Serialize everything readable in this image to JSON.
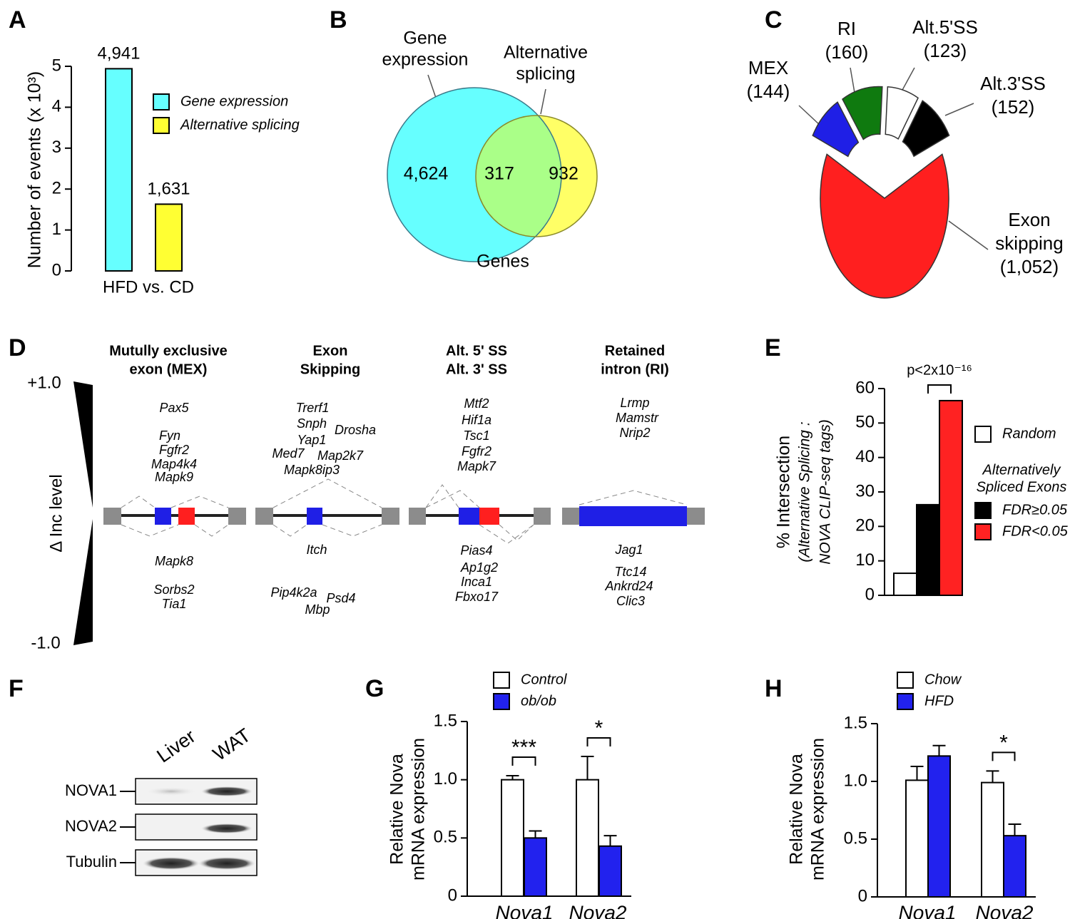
{
  "chart_data": [
    {
      "panel": "A",
      "type": "bar",
      "ylabel": "Number of events (x 10³)",
      "categories": [
        "HFD vs. CD"
      ],
      "series": [
        {
          "name": "Gene expression",
          "color": "#66ffff",
          "values": [
            4.941
          ],
          "value_labels": [
            "4,941"
          ]
        },
        {
          "name": "Alternative splicing",
          "color": "#ffff33",
          "values": [
            1.631
          ],
          "value_labels": [
            "1,631"
          ]
        }
      ],
      "ylim": [
        0,
        5
      ],
      "yticks": [
        0,
        1,
        2,
        3,
        4,
        5
      ]
    },
    {
      "panel": "B",
      "type": "venn",
      "sets": [
        {
          "name": [
            "Gene",
            "expression"
          ],
          "color": "#66ffff"
        },
        {
          "name": [
            "Alternative",
            "splicing"
          ],
          "color": "#ffff66"
        }
      ],
      "overlap_color": "#aaff88",
      "values": [
        4624,
        317,
        932
      ],
      "value_labels": [
        "4,624",
        "317",
        "932"
      ],
      "xlabel": "Genes"
    },
    {
      "panel": "C",
      "type": "pie",
      "categories": [
        [
          "MEX"
        ],
        [
          "RI"
        ],
        [
          "Alt.5'SS"
        ],
        [
          "Alt.3'SS"
        ],
        [
          "Exon",
          "skipping"
        ]
      ],
      "values": [
        144,
        160,
        123,
        152,
        1052
      ],
      "value_labels": [
        "(144)",
        "(160)",
        "(123)",
        "(152)",
        "(1,052)"
      ],
      "colors": [
        "#1f1fe6",
        "#0f7a0f",
        "#ffffff",
        "#000000",
        "#ff1f1f"
      ]
    },
    {
      "panel": "E",
      "type": "bar",
      "ylabel": [
        "% Intersection",
        "(Alternative Splicing :",
        "NOVA CLIP-seq tags)"
      ],
      "series": [
        {
          "name": "Random",
          "color": "#ffffff",
          "values": [
            6.4
          ]
        },
        {
          "name": "FDR≥0.05",
          "color": "#000000",
          "values": [
            26.3
          ]
        },
        {
          "name": "FDR<0.05",
          "color": "#ff2222",
          "values": [
            56.5
          ]
        }
      ],
      "legend_title": [
        "Alternatively",
        "Spliced Exons"
      ],
      "annotation": "p<2x10⁻¹⁶",
      "ylim": [
        0,
        60
      ],
      "yticks": [
        0,
        10,
        20,
        30,
        40,
        50,
        60
      ]
    },
    {
      "panel": "G",
      "type": "bar",
      "ylabel": [
        "Relative Nova",
        "mRNA expression"
      ],
      "categories": [
        "Nova1",
        "Nova2"
      ],
      "series": [
        {
          "name": "Control",
          "color": "#ffffff",
          "values": [
            1.0,
            1.0
          ],
          "errors": [
            0.035,
            0.2
          ]
        },
        {
          "name": "ob/ob",
          "color": "#2222ee",
          "values": [
            0.5,
            0.43
          ],
          "errors": [
            0.06,
            0.09
          ]
        }
      ],
      "significance": [
        "***",
        "*"
      ],
      "ylim": [
        0,
        1.5
      ],
      "yticks": [
        0,
        0.5,
        {
          "value": 1,
          "label": "1.0"
        },
        1.5
      ]
    },
    {
      "panel": "H",
      "type": "bar",
      "ylabel": [
        "Relative Nova",
        "mRNA expression"
      ],
      "categories": [
        "Nova1",
        "Nova2"
      ],
      "series": [
        {
          "name": "Chow",
          "color": "#ffffff",
          "values": [
            1.01,
            0.99
          ],
          "errors": [
            0.12,
            0.1
          ]
        },
        {
          "name": "HFD",
          "color": "#2222ee",
          "values": [
            1.22,
            0.53
          ],
          "errors": [
            0.09,
            0.1
          ]
        }
      ],
      "significance": [
        null,
        "*"
      ],
      "ylim": [
        0,
        1.5
      ],
      "yticks": [
        0,
        0.5,
        {
          "value": 1,
          "label": "1.0"
        },
        1.5
      ]
    }
  ],
  "diagram": {
    "panel": "D",
    "scale_top": "+1.0",
    "scale_bottom": "-1.0",
    "scale_label": "Δ Inc level",
    "columns": [
      {
        "title": [
          "Mutully exclusive",
          "exon (MEX)"
        ],
        "up": [
          "Pax5",
          "Fyn",
          "Fgfr2",
          "Map4k4",
          "Mapk9"
        ],
        "down": [
          "Mapk8",
          "Sorbs2",
          "Tia1"
        ]
      },
      {
        "title": [
          "Exon",
          "Skipping"
        ],
        "up": [
          "Trerf1",
          "Snph",
          "Drosha",
          "Yap1",
          "Map2k7",
          "Med7",
          "Mapk8ip3"
        ],
        "down": [
          "Itch",
          "Pip4k2a",
          "Psd4",
          "Mbp"
        ]
      },
      {
        "title": [
          "Alt. 5' SS",
          "Alt. 3' SS"
        ],
        "up": [
          "Mtf2",
          "Hif1a",
          "Tsc1",
          "Fgfr2",
          "Mapk7"
        ],
        "down": [
          "Pias4",
          "Ap1g2",
          "Inca1",
          "Fbxo17"
        ]
      },
      {
        "title": [
          "Retained",
          "intron (RI)"
        ],
        "up": [
          "Lrmp",
          "Mamstr",
          "Nrip2"
        ],
        "down": [
          "Jag1",
          "Ttc14",
          "Ankrd24",
          "Clic3"
        ]
      }
    ]
  },
  "blot": {
    "panel": "F",
    "lanes": [
      "Liver",
      "WAT"
    ],
    "proteins": [
      "NOVA1",
      "NOVA2",
      "Tubulin"
    ]
  }
}
